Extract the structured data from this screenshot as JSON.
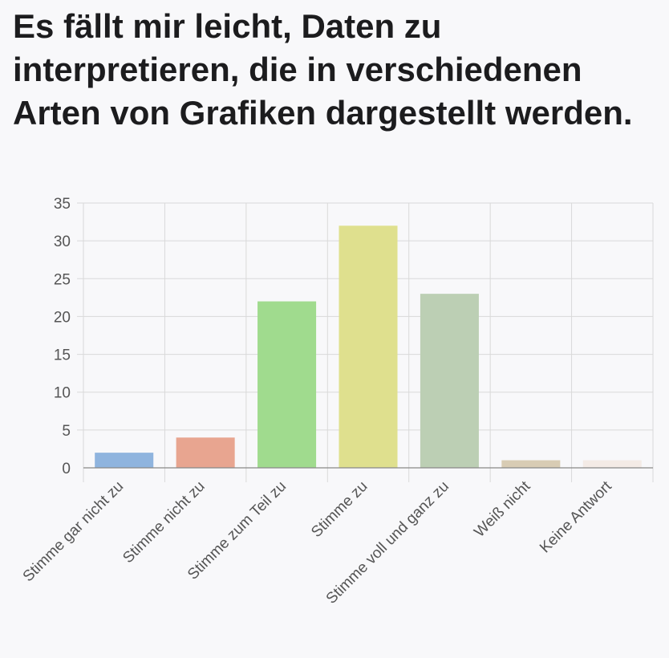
{
  "chart_data": {
    "type": "bar",
    "title": "Es fällt mir leicht, Daten zu interpretieren, die in verschiedenen Arten von Grafiken dargestellt werden.",
    "categories": [
      "Stimme gar nicht zu",
      "Stimme nicht zu",
      "Stimme zum Teil zu",
      "Stimme zu",
      "Stimme voll und ganz zu",
      "Weiß nicht",
      "Keine Antwort"
    ],
    "values": [
      2,
      4,
      22,
      32,
      23,
      1,
      1
    ],
    "colors": [
      "#8fb4de",
      "#e8a590",
      "#a0db8e",
      "#dfe08e",
      "#bccfb4",
      "#d8ccb4",
      "#f4ebe6"
    ],
    "xlabel": "",
    "ylabel": "",
    "ylim": [
      0,
      35
    ],
    "yticks": [
      0,
      5,
      10,
      15,
      20,
      25,
      30,
      35
    ],
    "grid": true,
    "legend": "none"
  }
}
